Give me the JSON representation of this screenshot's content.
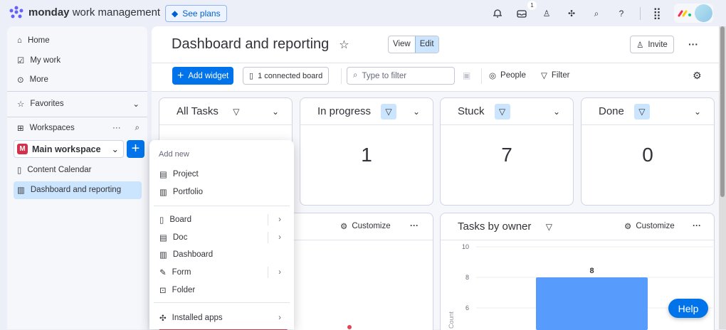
{
  "topbar": {
    "brand_bold": "monday",
    "brand_rest": "work management",
    "see_plans": "See plans",
    "inbox_badge": "1"
  },
  "sidebar": {
    "home": "Home",
    "my_work": "My work",
    "more": "More",
    "favorites": "Favorites",
    "workspaces": "Workspaces",
    "workspace_name": "Main workspace",
    "workspace_initial": "M",
    "items": [
      {
        "label": "Content Calendar"
      },
      {
        "label": "Dashboard and reporting"
      }
    ]
  },
  "header": {
    "title": "Dashboard and reporting",
    "view": "View",
    "edit": "Edit",
    "invite": "Invite"
  },
  "toolbar": {
    "add_widget": "Add widget",
    "connected": "1 connected board",
    "filter_placeholder": "Type to filter",
    "people": "People",
    "filter": "Filter"
  },
  "widgets": [
    {
      "title": "All Tasks",
      "value": ""
    },
    {
      "title": "In progress",
      "value": "1"
    },
    {
      "title": "Stuck",
      "value": "7"
    },
    {
      "title": "Done",
      "value": "0"
    }
  ],
  "customize": "Customize",
  "owner_widget": {
    "title": "Tasks by owner"
  },
  "menu": {
    "header": "Add new",
    "items": [
      {
        "label": "Project"
      },
      {
        "label": "Portfolio"
      },
      {
        "label": "Board"
      },
      {
        "label": "Doc"
      },
      {
        "label": "Dashboard"
      },
      {
        "label": "Form"
      },
      {
        "label": "Folder"
      },
      {
        "label": "Installed apps"
      }
    ]
  },
  "help": "Help",
  "colors": {
    "primary": "#0073ea",
    "bar": "#579bfc",
    "pie": "#e2445c"
  },
  "chart_data": {
    "type": "bar",
    "title": "Tasks by owner",
    "ylabel": "Count",
    "ylim": [
      0,
      10
    ],
    "yticks": [
      "10",
      "8",
      "6"
    ],
    "categories": [
      ""
    ],
    "values": [
      8
    ],
    "data_labels": [
      "8"
    ]
  }
}
